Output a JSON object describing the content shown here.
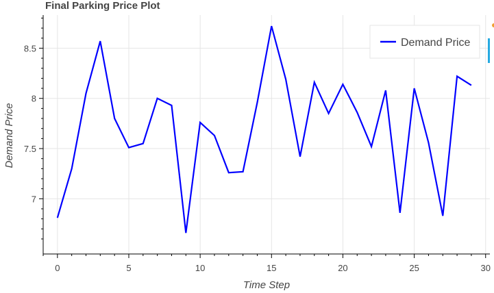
{
  "chart_data": {
    "type": "line",
    "title": "Final Parking Price Plot",
    "xlabel": "Time Step",
    "ylabel": "Demand Price",
    "x": [
      0,
      1,
      2,
      3,
      4,
      5,
      6,
      7,
      8,
      9,
      10,
      11,
      12,
      13,
      14,
      15,
      16,
      17,
      18,
      19,
      20,
      21,
      22,
      23,
      24,
      25,
      26,
      27,
      28,
      29
    ],
    "series": [
      {
        "name": "Demand Price",
        "color": "#0000ff",
        "values": [
          6.81,
          7.3,
          8.05,
          8.57,
          7.8,
          7.51,
          7.55,
          8.0,
          7.93,
          6.66,
          7.76,
          7.63,
          7.26,
          7.27,
          7.96,
          8.72,
          8.19,
          7.42,
          8.16,
          7.85,
          8.14,
          7.86,
          7.52,
          8.08,
          6.86,
          8.1,
          7.56,
          6.83,
          8.22,
          8.13
        ]
      }
    ],
    "xlim": [
      -1.0,
      30.3
    ],
    "ylim": [
      6.45,
      8.83
    ],
    "xticks": [
      0,
      5,
      10,
      15,
      20,
      25,
      30
    ],
    "yticks": [
      7,
      7.5,
      8,
      8.5
    ],
    "ytick_labels": [
      "7",
      "7.5",
      "8",
      "8.5"
    ],
    "grid": true,
    "legend_position": "top-right"
  }
}
